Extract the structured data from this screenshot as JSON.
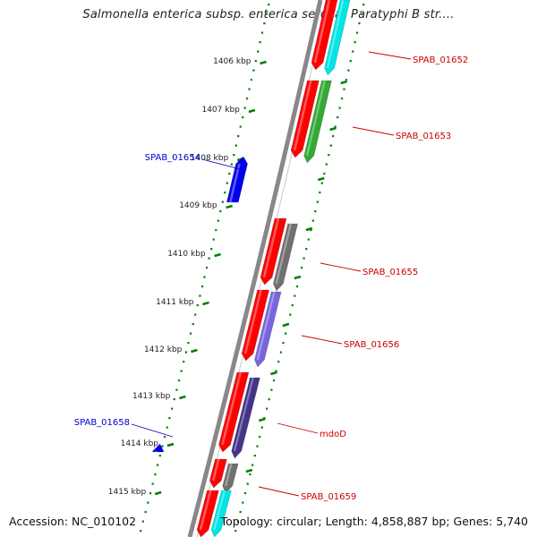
{
  "title": "Salmonella enterica subsp. enterica serovar Paratyphi B str....",
  "footer": {
    "accession": "Accession: NC_010102",
    "summary": "Topology: circular; Length: 4,858,887 bp; Genes: 5,740"
  },
  "ruler": {
    "ticks": [
      {
        "label": "1406 kbp"
      },
      {
        "label": "1407 kbp"
      },
      {
        "label": "1408 kbp"
      },
      {
        "label": "1409 kbp"
      },
      {
        "label": "1410 kbp"
      },
      {
        "label": "1411 kbp"
      },
      {
        "label": "1412 kbp"
      },
      {
        "label": "1413 kbp"
      },
      {
        "label": "1414 kbp"
      },
      {
        "label": "1415 kbp"
      }
    ]
  },
  "colors": {
    "backbone": "#888888",
    "dots": "#008000",
    "forward_gene": "#ff0000",
    "reverse_label": "#cc0000",
    "forward_label": "#0000cc",
    "cyan": "#00e5e5",
    "green": "#33aa33",
    "gray": "#707070",
    "lavender": "#7766dd",
    "navy": "#443388",
    "blue": "#0000ee"
  },
  "gene_labels": {
    "reverse": [
      {
        "name": "SPAB_01652"
      },
      {
        "name": "SPAB_01653"
      },
      {
        "name": "SPAB_01655"
      },
      {
        "name": "SPAB_01656"
      },
      {
        "name": "mdoD"
      },
      {
        "name": "SPAB_01659"
      }
    ],
    "forward": [
      {
        "name": "SPAB_01654"
      },
      {
        "name": "SPAB_01658"
      }
    ]
  }
}
